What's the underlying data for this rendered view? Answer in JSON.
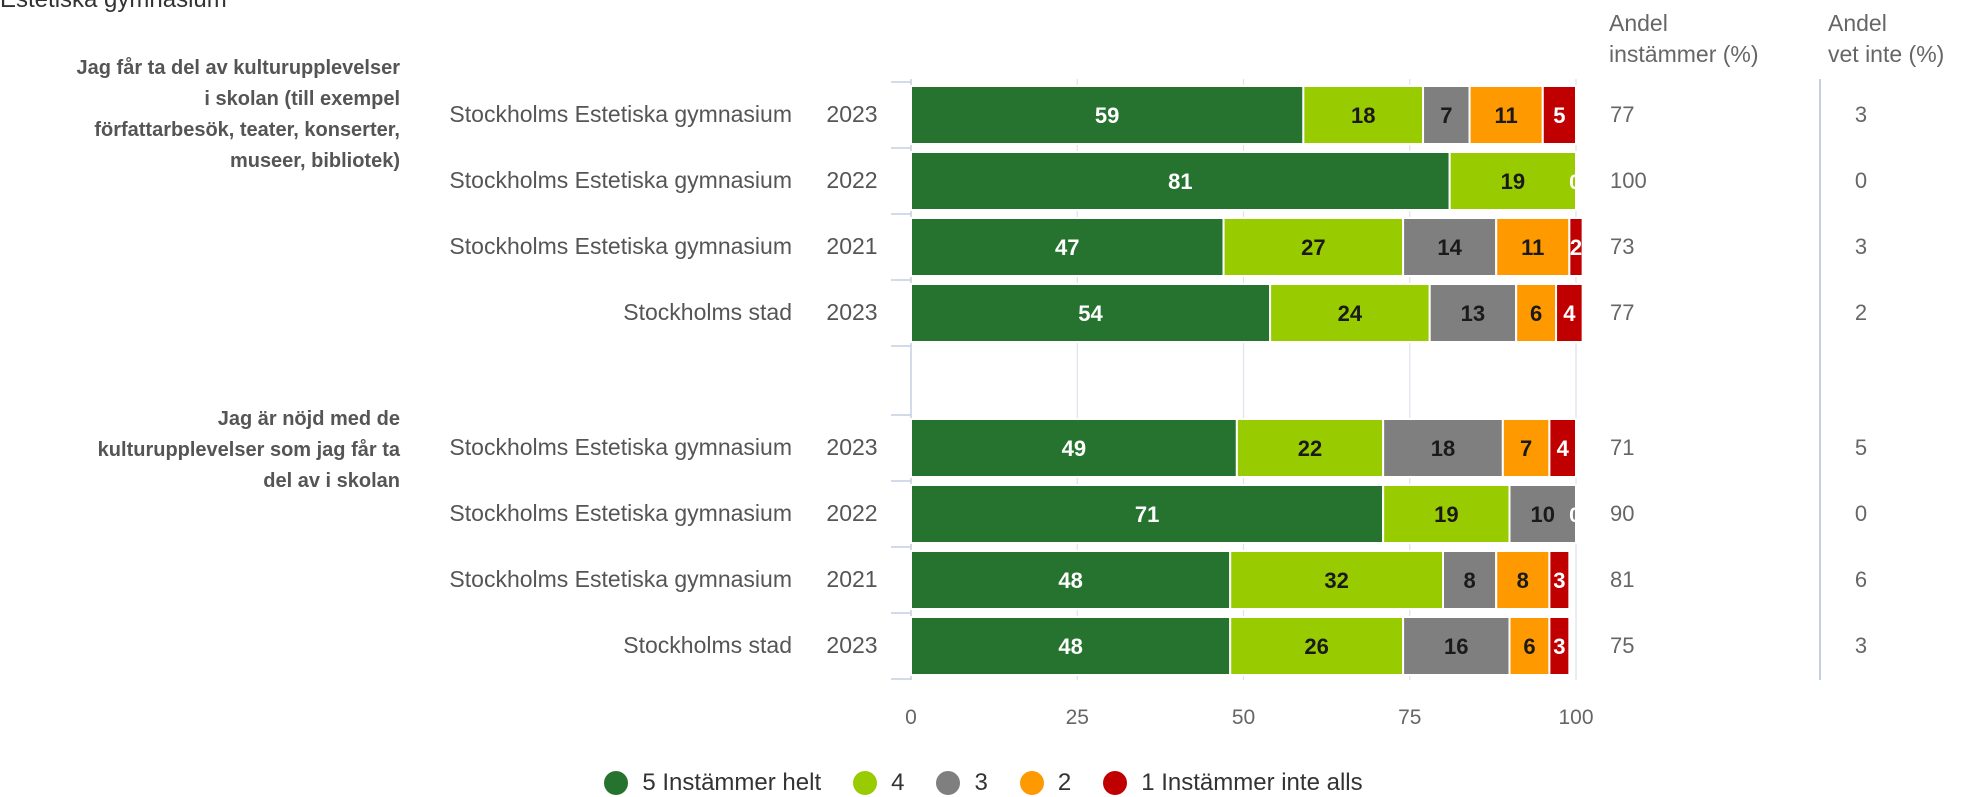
{
  "header": {
    "partial_title": "Estetiska gymnasium",
    "col_agree": [
      "Andel",
      "instämmer (%)"
    ],
    "col_dontknow": [
      "Andel",
      "vet inte (%)"
    ]
  },
  "colors": {
    "5": "#267330",
    "4": "#99cc00",
    "3": "#7f7f7f",
    "2": "#ff9900",
    "1": "#c00000",
    "text_light": "#ffffff",
    "text_dark": "#1a1a1a"
  },
  "chart_data": {
    "type": "bar",
    "orientation": "horizontal",
    "stacked": true,
    "xlim": [
      0,
      100
    ],
    "xticks": [
      0,
      25,
      50,
      75,
      100
    ],
    "grid": true,
    "legend_position": "bottom",
    "legend": [
      "5 Instämmer helt",
      "4",
      "3",
      "2",
      "1 Instämmer inte alls"
    ],
    "groups": [
      {
        "title": [
          "Jag får ta del av kulturupplevelser",
          "i skolan (till exempel",
          "författarbesök, teater, konserter,",
          "museer, bibliotek)"
        ],
        "rows": [
          {
            "label": "Stockholms Estetiska gymnasium",
            "year": "2023",
            "values": [
              59,
              18,
              7,
              11,
              5
            ],
            "agree": 77,
            "dontknow": 3
          },
          {
            "label": "Stockholms Estetiska gymnasium",
            "year": "2022",
            "values": [
              81,
              19,
              0,
              0,
              0
            ],
            "agree": 100,
            "dontknow": 0
          },
          {
            "label": "Stockholms Estetiska gymnasium",
            "year": "2021",
            "values": [
              47,
              27,
              14,
              11,
              2
            ],
            "agree": 73,
            "dontknow": 3
          },
          {
            "label": "Stockholms stad",
            "year": "2023",
            "values": [
              54,
              24,
              13,
              6,
              4
            ],
            "agree": 77,
            "dontknow": 2
          }
        ]
      },
      {
        "title": [
          "Jag är nöjd med de",
          "kulturupplevelser som jag får ta",
          "del av i skolan"
        ],
        "rows": [
          {
            "label": "Stockholms Estetiska gymnasium",
            "year": "2023",
            "values": [
              49,
              22,
              18,
              7,
              4
            ],
            "agree": 71,
            "dontknow": 5
          },
          {
            "label": "Stockholms Estetiska gymnasium",
            "year": "2022",
            "values": [
              71,
              19,
              10,
              0,
              0
            ],
            "agree": 90,
            "dontknow": 0
          },
          {
            "label": "Stockholms Estetiska gymnasium",
            "year": "2021",
            "values": [
              48,
              32,
              8,
              8,
              3
            ],
            "agree": 81,
            "dontknow": 6
          },
          {
            "label": "Stockholms stad",
            "year": "2023",
            "values": [
              48,
              26,
              16,
              6,
              3
            ],
            "agree": 75,
            "dontknow": 3
          }
        ]
      }
    ]
  }
}
